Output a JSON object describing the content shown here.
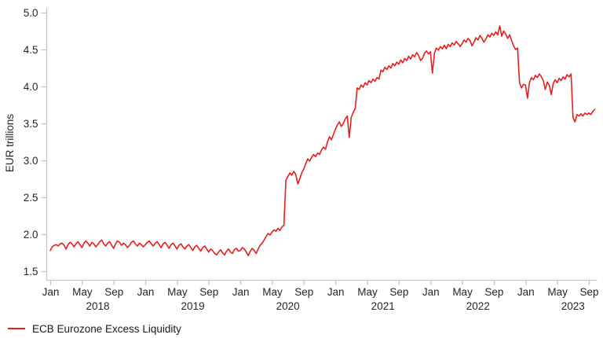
{
  "chart_data": {
    "type": "line",
    "title": "",
    "xlabel": "",
    "ylabel": "EUR trillions",
    "ylim": [
      1.5,
      5.0
    ],
    "grid": false,
    "legend_position": "bottom-left",
    "colors": {
      "line": "#e61e1e",
      "axis": "#c6c6c6",
      "text": "#262626"
    },
    "y_ticks": [
      "1.5",
      "2.0",
      "2.5",
      "3.0",
      "3.5",
      "4.0",
      "4.5",
      "5.0"
    ],
    "x_ticks": [
      {
        "label": "Jan",
        "m": 0
      },
      {
        "label": "May",
        "m": 4
      },
      {
        "label": "Sep",
        "m": 8
      },
      {
        "label": "Jan",
        "m": 12
      },
      {
        "label": "May",
        "m": 16
      },
      {
        "label": "Sep",
        "m": 20
      },
      {
        "label": "Jan",
        "m": 24
      },
      {
        "label": "May",
        "m": 28
      },
      {
        "label": "Sep",
        "m": 32
      },
      {
        "label": "Jan",
        "m": 36
      },
      {
        "label": "May",
        "m": 40
      },
      {
        "label": "Sep",
        "m": 44
      },
      {
        "label": "Jan",
        "m": 48
      },
      {
        "label": "May",
        "m": 52
      },
      {
        "label": "Sep",
        "m": 56
      },
      {
        "label": "Jan",
        "m": 60
      },
      {
        "label": "May",
        "m": 64
      },
      {
        "label": "Sep",
        "m": 68
      }
    ],
    "year_labels": [
      {
        "label": "2018",
        "m": 6
      },
      {
        "label": "2019",
        "m": 18
      },
      {
        "label": "2020",
        "m": 30
      },
      {
        "label": "2021",
        "m": 42
      },
      {
        "label": "2022",
        "m": 54
      },
      {
        "label": "2023",
        "m": 66
      }
    ],
    "series": [
      {
        "name": "ECB Eurozone Excess Liquidity",
        "unit": "EUR trillions",
        "x_start_month": 0,
        "x_step_months": 0.25,
        "x_start_label": "Jan 2018",
        "x_end_label": "Sep 2023",
        "values": [
          1.78,
          1.83,
          1.85,
          1.86,
          1.84,
          1.87,
          1.88,
          1.85,
          1.8,
          1.86,
          1.89,
          1.87,
          1.83,
          1.87,
          1.9,
          1.86,
          1.82,
          1.88,
          1.91,
          1.88,
          1.84,
          1.89,
          1.87,
          1.83,
          1.86,
          1.9,
          1.92,
          1.87,
          1.84,
          1.88,
          1.9,
          1.85,
          1.81,
          1.87,
          1.91,
          1.89,
          1.85,
          1.88,
          1.86,
          1.82,
          1.85,
          1.89,
          1.91,
          1.87,
          1.84,
          1.88,
          1.86,
          1.83,
          1.86,
          1.89,
          1.91,
          1.87,
          1.84,
          1.88,
          1.9,
          1.86,
          1.82,
          1.87,
          1.89,
          1.85,
          1.81,
          1.86,
          1.88,
          1.84,
          1.8,
          1.85,
          1.87,
          1.83,
          1.8,
          1.84,
          1.86,
          1.82,
          1.78,
          1.83,
          1.85,
          1.81,
          1.77,
          1.82,
          1.84,
          1.8,
          1.76,
          1.8,
          1.78,
          1.74,
          1.72,
          1.76,
          1.79,
          1.75,
          1.72,
          1.77,
          1.8,
          1.76,
          1.74,
          1.79,
          1.81,
          1.77,
          1.78,
          1.82,
          1.8,
          1.76,
          1.71,
          1.77,
          1.81,
          1.78,
          1.74,
          1.8,
          1.85,
          1.88,
          1.92,
          1.97,
          2.01,
          1.99,
          2.03,
          2.06,
          2.04,
          2.08,
          2.05,
          2.1,
          2.12,
          2.73,
          2.78,
          2.83,
          2.8,
          2.85,
          2.81,
          2.68,
          2.75,
          2.83,
          2.88,
          2.95,
          3.02,
          2.99,
          3.04,
          3.08,
          3.05,
          3.1,
          3.08,
          3.14,
          3.18,
          3.15,
          3.25,
          3.32,
          3.28,
          3.35,
          3.42,
          3.48,
          3.52,
          3.46,
          3.5,
          3.56,
          3.6,
          3.31,
          3.58,
          3.65,
          3.7,
          3.98,
          3.96,
          4.02,
          3.99,
          4.05,
          4.02,
          4.08,
          4.05,
          4.1,
          4.07,
          4.12,
          4.1,
          4.22,
          4.2,
          4.26,
          4.23,
          4.28,
          4.25,
          4.31,
          4.28,
          4.33,
          4.3,
          4.36,
          4.32,
          4.38,
          4.35,
          4.41,
          4.37,
          4.43,
          4.4,
          4.46,
          4.42,
          4.35,
          4.38,
          4.45,
          4.48,
          4.44,
          4.47,
          4.18,
          4.45,
          4.52,
          4.49,
          4.54,
          4.51,
          4.56,
          4.51,
          4.57,
          4.54,
          4.59,
          4.56,
          4.61,
          4.58,
          4.54,
          4.58,
          4.63,
          4.6,
          4.65,
          4.62,
          4.55,
          4.6,
          4.66,
          4.63,
          4.69,
          4.65,
          4.6,
          4.64,
          4.7,
          4.67,
          4.72,
          4.69,
          4.74,
          4.7,
          4.82,
          4.68,
          4.75,
          4.71,
          4.65,
          4.7,
          4.62,
          4.55,
          4.5,
          4.52,
          4.05,
          3.98,
          4.03,
          4.02,
          3.84,
          4.05,
          4.12,
          4.09,
          4.15,
          4.12,
          4.17,
          4.13,
          4.08,
          3.96,
          4.06,
          4.02,
          3.89,
          4.04,
          4.09,
          4.05,
          4.11,
          4.08,
          4.13,
          4.1,
          4.16,
          4.13,
          4.17,
          3.58,
          3.52,
          3.62,
          3.6,
          3.63,
          3.6,
          3.64,
          3.62,
          3.64,
          3.62,
          3.66,
          3.69
        ]
      }
    ]
  },
  "legend": {
    "items": [
      {
        "label": "ECB Eurozone Excess Liquidity",
        "color": "#e61e1e"
      }
    ]
  }
}
